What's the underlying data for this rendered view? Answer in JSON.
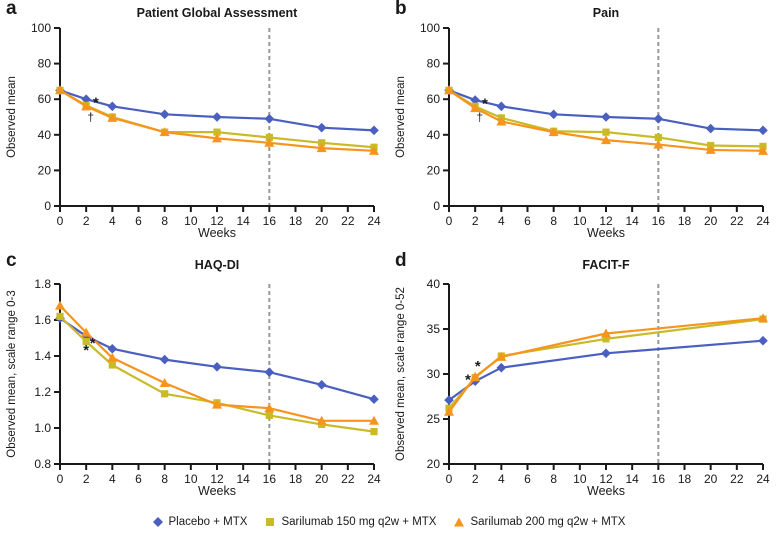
{
  "chart_data": [
    {
      "type": "line",
      "letter": "a",
      "title": "Patient Global Assessment",
      "xlabel": "Weeks",
      "ylabel": "Observed mean",
      "xlim": [
        0,
        24
      ],
      "ylim": [
        0,
        100
      ],
      "xticks": [
        0,
        2,
        4,
        6,
        8,
        10,
        12,
        14,
        16,
        18,
        20,
        22,
        24
      ],
      "yticks": [
        0,
        20,
        40,
        60,
        80,
        100
      ],
      "ytick_labels": [
        "0",
        "20",
        "40",
        "60",
        "80",
        "100"
      ],
      "vline_x": 16,
      "x": [
        0,
        2,
        4,
        8,
        12,
        16,
        20,
        24
      ],
      "series": [
        {
          "name": "Placebo + MTX",
          "marker": "diamond",
          "color": "#4a5fc0",
          "values": [
            65,
            60,
            56,
            51.5,
            50,
            49,
            44,
            42.5
          ]
        },
        {
          "name": "Sarilumab 150 mg q2w + MTX",
          "marker": "square",
          "color": "#c9bb28",
          "values": [
            65,
            56.5,
            50,
            41.5,
            41.5,
            38.5,
            35.5,
            33
          ]
        },
        {
          "name": "Sarilumab 200 mg q2w + MTX",
          "marker": "triangle",
          "color": "#f7941e",
          "values": [
            65,
            56,
            49.5,
            41.5,
            38,
            35.5,
            32.5,
            31
          ]
        }
      ],
      "annotations": [
        {
          "text": "*",
          "x": 2.75,
          "y": 57.5
        },
        {
          "text": "†",
          "x": 2.35,
          "y": 50
        }
      ]
    },
    {
      "type": "line",
      "letter": "b",
      "title": "Pain",
      "xlabel": "Weeks",
      "ylabel": "Observed mean",
      "xlim": [
        0,
        24
      ],
      "ylim": [
        0,
        100
      ],
      "xticks": [
        0,
        2,
        4,
        6,
        8,
        10,
        12,
        14,
        16,
        18,
        20,
        22,
        24
      ],
      "yticks": [
        0,
        20,
        40,
        60,
        80,
        100
      ],
      "ytick_labels": [
        "0",
        "20",
        "40",
        "60",
        "80",
        "100"
      ],
      "vline_x": 16,
      "x": [
        0,
        2,
        4,
        8,
        12,
        16,
        20,
        24
      ],
      "series": [
        {
          "name": "Placebo + MTX",
          "marker": "diamond",
          "color": "#4a5fc0",
          "values": [
            65,
            59.5,
            56,
            51.5,
            50,
            49,
            43.5,
            42.5
          ]
        },
        {
          "name": "Sarilumab 150 mg q2w + MTX",
          "marker": "square",
          "color": "#c9bb28",
          "values": [
            65,
            56,
            49.5,
            42,
            41.5,
            38.5,
            34,
            33.5
          ]
        },
        {
          "name": "Sarilumab 200 mg q2w + MTX",
          "marker": "triangle",
          "color": "#f7941e",
          "values": [
            65,
            55,
            47.5,
            41.5,
            37,
            34.5,
            31.5,
            31
          ]
        }
      ],
      "annotations": [
        {
          "text": "*",
          "x": 2.75,
          "y": 57
        },
        {
          "text": "†",
          "x": 2.35,
          "y": 50
        }
      ]
    },
    {
      "type": "line",
      "letter": "c",
      "title": "HAQ-DI",
      "xlabel": "Weeks",
      "ylabel": "Observed mean, scale range 0-3",
      "xlim": [
        0,
        24
      ],
      "ylim": [
        0.8,
        1.8
      ],
      "xticks": [
        0,
        2,
        4,
        6,
        8,
        10,
        12,
        14,
        16,
        18,
        20,
        22,
        24
      ],
      "yticks": [
        0.8,
        1.0,
        1.2,
        1.4,
        1.6,
        1.8
      ],
      "ytick_labels": [
        "0.8",
        "1.0",
        "1.2",
        "1.4",
        "1.6",
        "1.8"
      ],
      "vline_x": 16,
      "x": [
        0,
        2,
        4,
        8,
        12,
        16,
        20,
        24
      ],
      "series": [
        {
          "name": "Placebo + MTX",
          "marker": "diamond",
          "color": "#4a5fc0",
          "values": [
            1.61,
            1.51,
            1.44,
            1.38,
            1.34,
            1.31,
            1.24,
            1.16
          ]
        },
        {
          "name": "Sarilumab 150 mg q2w + MTX",
          "marker": "square",
          "color": "#c9bb28",
          "values": [
            1.62,
            1.48,
            1.35,
            1.19,
            1.14,
            1.07,
            1.02,
            0.98
          ]
        },
        {
          "name": "Sarilumab 200 mg q2w + MTX",
          "marker": "triangle",
          "color": "#f7941e",
          "values": [
            1.68,
            1.53,
            1.39,
            1.25,
            1.13,
            1.11,
            1.04,
            1.04
          ]
        }
      ],
      "annotations": [
        {
          "text": "*",
          "x": 2.5,
          "y": 1.468
        },
        {
          "text": "*",
          "x": 2.0,
          "y": 1.428
        }
      ]
    },
    {
      "type": "line",
      "letter": "d",
      "title": "FACIT-F",
      "xlabel": "Weeks",
      "ylabel": "Observed mean, scale range 0-52",
      "xlim": [
        0,
        24
      ],
      "ylim": [
        20,
        40
      ],
      "xticks": [
        0,
        2,
        4,
        6,
        8,
        10,
        12,
        14,
        16,
        18,
        20,
        22,
        24
      ],
      "yticks": [
        20,
        25,
        30,
        35,
        40
      ],
      "ytick_labels": [
        "20",
        "25",
        "30",
        "35",
        "40"
      ],
      "vline_x": 16,
      "x": [
        0,
        2,
        4,
        12,
        24
      ],
      "series": [
        {
          "name": "Placebo + MTX",
          "marker": "diamond",
          "color": "#4a5fc0",
          "values": [
            27.1,
            29.2,
            30.7,
            32.3,
            33.7
          ]
        },
        {
          "name": "Sarilumab 150 mg q2w + MTX",
          "marker": "square",
          "color": "#c9bb28",
          "values": [
            26.2,
            29.6,
            32.0,
            33.9,
            36.1
          ]
        },
        {
          "name": "Sarilumab 200 mg q2w + MTX",
          "marker": "triangle",
          "color": "#f7941e",
          "values": [
            25.8,
            29.7,
            31.9,
            34.5,
            36.2
          ]
        }
      ],
      "annotations": [
        {
          "text": "*",
          "x": 1.45,
          "y": 29.3
        },
        {
          "text": "*",
          "x": 2.2,
          "y": 30.8
        }
      ]
    }
  ],
  "legend": {
    "items": [
      {
        "label": "Placebo + MTX",
        "marker": "diamond",
        "color": "#4a5fc0"
      },
      {
        "label": "Sarilumab 150 mg q2w + MTX",
        "marker": "square",
        "color": "#c9bb28"
      },
      {
        "label": "Sarilumab 200 mg q2w + MTX",
        "marker": "triangle",
        "color": "#f7941e"
      }
    ]
  },
  "style_colors": {
    "axis": "#1a1a1a",
    "dashed_line": "#999999"
  }
}
